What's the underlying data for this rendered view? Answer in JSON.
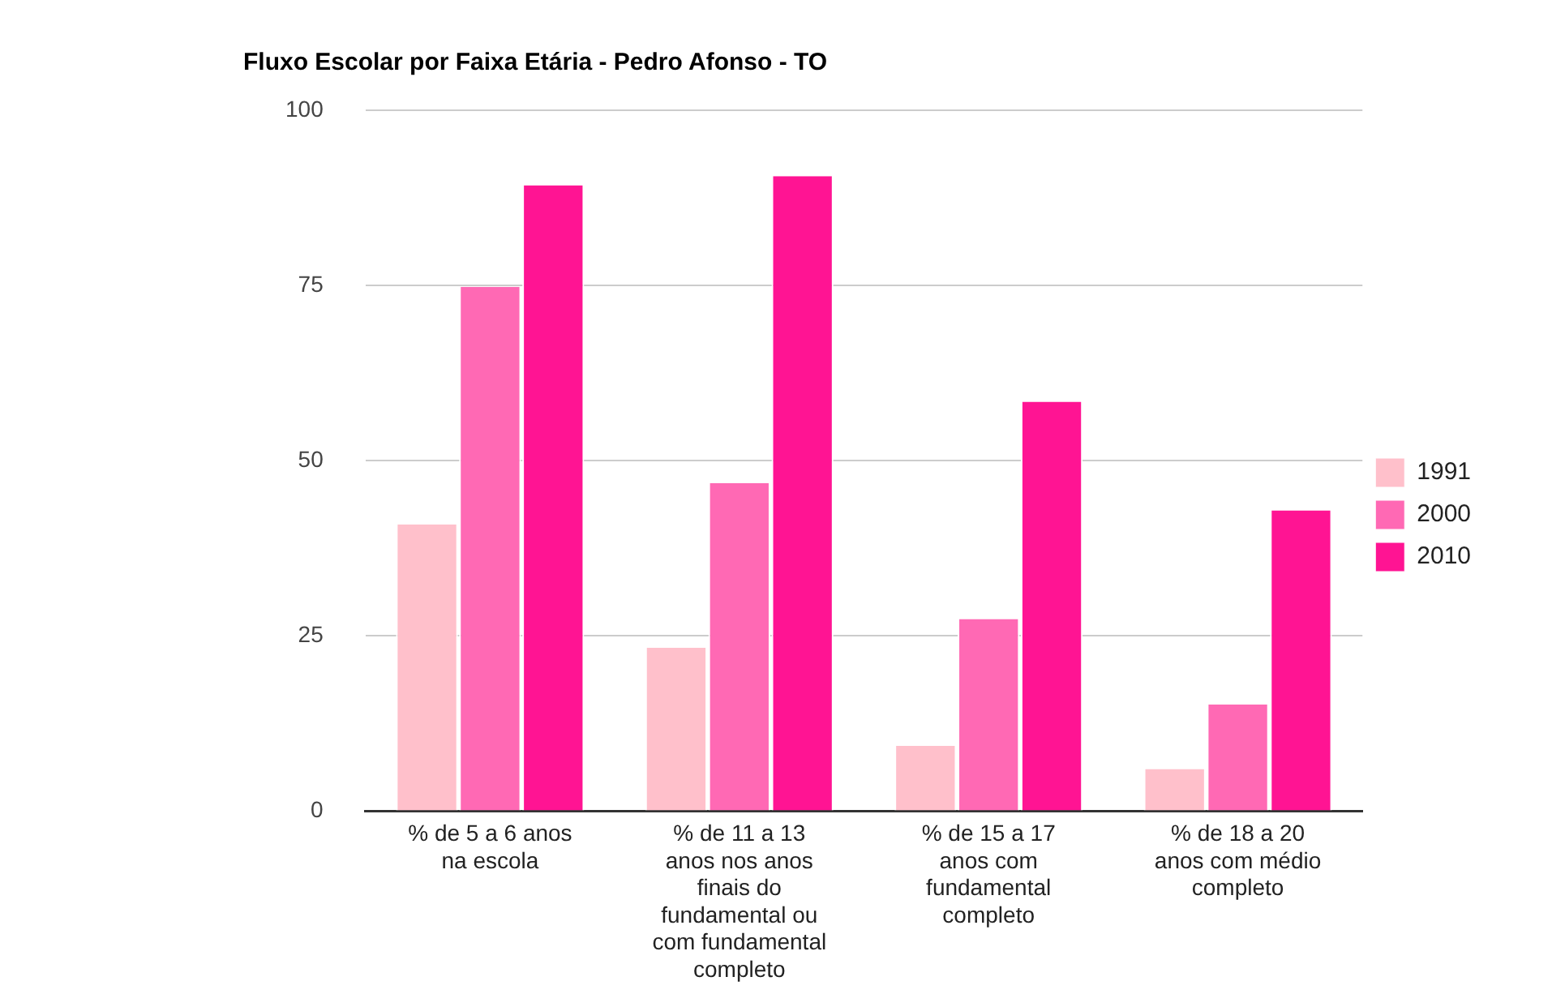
{
  "chart_data": {
    "type": "bar",
    "title": "Fluxo Escolar por Faixa Etária - Pedro Afonso - TO",
    "categories": [
      "% de 5 a 6 anos na escola",
      "% de 11 a 13 anos nos anos finais do fundamental ou com fundamental completo",
      "% de 15 a 17 anos com fundamental completo",
      "% de 18 a 20 anos com médio completo"
    ],
    "series": [
      {
        "name": "1991",
        "color": "#ffc0cb",
        "values": [
          40.9,
          23.3,
          9.3,
          6.0
        ]
      },
      {
        "name": "2000",
        "color": "#ff69b4",
        "values": [
          74.8,
          46.8,
          27.4,
          15.2
        ]
      },
      {
        "name": "2010",
        "color": "#ff1493",
        "values": [
          89.3,
          90.6,
          58.4,
          42.9
        ]
      }
    ],
    "ylim": [
      0,
      100
    ],
    "yticks": [
      0,
      25,
      50,
      75,
      100
    ],
    "grid": "y",
    "legend": "right"
  }
}
